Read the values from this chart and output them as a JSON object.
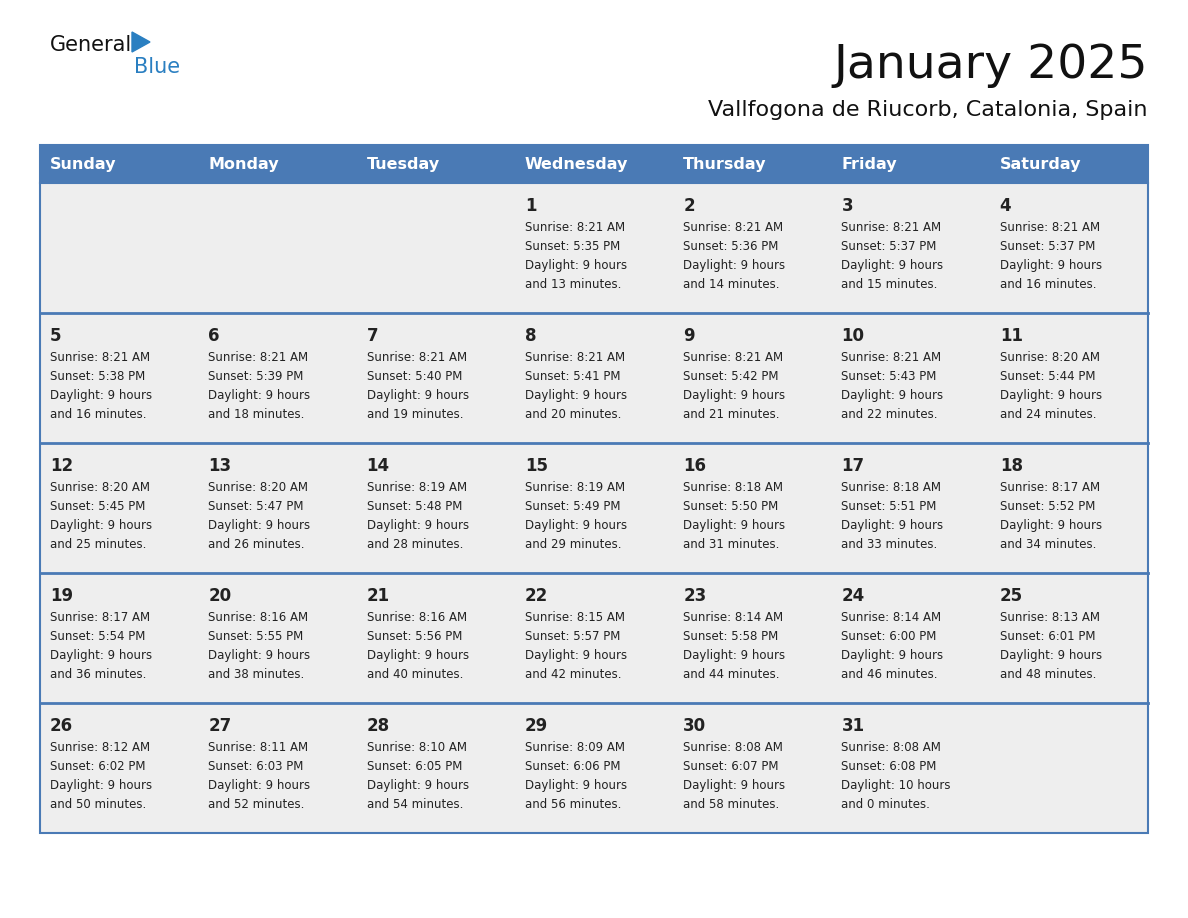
{
  "title": "January 2025",
  "subtitle": "Vallfogona de Riucorb, Catalonia, Spain",
  "days_of_week": [
    "Sunday",
    "Monday",
    "Tuesday",
    "Wednesday",
    "Thursday",
    "Friday",
    "Saturday"
  ],
  "header_bg": "#4a7ab5",
  "header_text": "#FFFFFF",
  "cell_bg": "#eeeeee",
  "separator_color": "#4a7ab5",
  "day_num_color": "#222222",
  "cell_text_color": "#222222",
  "title_color": "#111111",
  "logo_general_color": "#111111",
  "logo_blue_color": "#2a7fc1",
  "logo_triangle_color": "#2a7fc1",
  "calendar_data": [
    [
      null,
      null,
      null,
      {
        "day": 1,
        "sunrise": "8:21 AM",
        "sunset": "5:35 PM",
        "daylight_h": "9 hours",
        "daylight_m": "and 13 minutes."
      },
      {
        "day": 2,
        "sunrise": "8:21 AM",
        "sunset": "5:36 PM",
        "daylight_h": "9 hours",
        "daylight_m": "and 14 minutes."
      },
      {
        "day": 3,
        "sunrise": "8:21 AM",
        "sunset": "5:37 PM",
        "daylight_h": "9 hours",
        "daylight_m": "and 15 minutes."
      },
      {
        "day": 4,
        "sunrise": "8:21 AM",
        "sunset": "5:37 PM",
        "daylight_h": "9 hours",
        "daylight_m": "and 16 minutes."
      }
    ],
    [
      {
        "day": 5,
        "sunrise": "8:21 AM",
        "sunset": "5:38 PM",
        "daylight_h": "9 hours",
        "daylight_m": "and 16 minutes."
      },
      {
        "day": 6,
        "sunrise": "8:21 AM",
        "sunset": "5:39 PM",
        "daylight_h": "9 hours",
        "daylight_m": "and 18 minutes."
      },
      {
        "day": 7,
        "sunrise": "8:21 AM",
        "sunset": "5:40 PM",
        "daylight_h": "9 hours",
        "daylight_m": "and 19 minutes."
      },
      {
        "day": 8,
        "sunrise": "8:21 AM",
        "sunset": "5:41 PM",
        "daylight_h": "9 hours",
        "daylight_m": "and 20 minutes."
      },
      {
        "day": 9,
        "sunrise": "8:21 AM",
        "sunset": "5:42 PM",
        "daylight_h": "9 hours",
        "daylight_m": "and 21 minutes."
      },
      {
        "day": 10,
        "sunrise": "8:21 AM",
        "sunset": "5:43 PM",
        "daylight_h": "9 hours",
        "daylight_m": "and 22 minutes."
      },
      {
        "day": 11,
        "sunrise": "8:20 AM",
        "sunset": "5:44 PM",
        "daylight_h": "9 hours",
        "daylight_m": "and 24 minutes."
      }
    ],
    [
      {
        "day": 12,
        "sunrise": "8:20 AM",
        "sunset": "5:45 PM",
        "daylight_h": "9 hours",
        "daylight_m": "and 25 minutes."
      },
      {
        "day": 13,
        "sunrise": "8:20 AM",
        "sunset": "5:47 PM",
        "daylight_h": "9 hours",
        "daylight_m": "and 26 minutes."
      },
      {
        "day": 14,
        "sunrise": "8:19 AM",
        "sunset": "5:48 PM",
        "daylight_h": "9 hours",
        "daylight_m": "and 28 minutes."
      },
      {
        "day": 15,
        "sunrise": "8:19 AM",
        "sunset": "5:49 PM",
        "daylight_h": "9 hours",
        "daylight_m": "and 29 minutes."
      },
      {
        "day": 16,
        "sunrise": "8:18 AM",
        "sunset": "5:50 PM",
        "daylight_h": "9 hours",
        "daylight_m": "and 31 minutes."
      },
      {
        "day": 17,
        "sunrise": "8:18 AM",
        "sunset": "5:51 PM",
        "daylight_h": "9 hours",
        "daylight_m": "and 33 minutes."
      },
      {
        "day": 18,
        "sunrise": "8:17 AM",
        "sunset": "5:52 PM",
        "daylight_h": "9 hours",
        "daylight_m": "and 34 minutes."
      }
    ],
    [
      {
        "day": 19,
        "sunrise": "8:17 AM",
        "sunset": "5:54 PM",
        "daylight_h": "9 hours",
        "daylight_m": "and 36 minutes."
      },
      {
        "day": 20,
        "sunrise": "8:16 AM",
        "sunset": "5:55 PM",
        "daylight_h": "9 hours",
        "daylight_m": "and 38 minutes."
      },
      {
        "day": 21,
        "sunrise": "8:16 AM",
        "sunset": "5:56 PM",
        "daylight_h": "9 hours",
        "daylight_m": "and 40 minutes."
      },
      {
        "day": 22,
        "sunrise": "8:15 AM",
        "sunset": "5:57 PM",
        "daylight_h": "9 hours",
        "daylight_m": "and 42 minutes."
      },
      {
        "day": 23,
        "sunrise": "8:14 AM",
        "sunset": "5:58 PM",
        "daylight_h": "9 hours",
        "daylight_m": "and 44 minutes."
      },
      {
        "day": 24,
        "sunrise": "8:14 AM",
        "sunset": "6:00 PM",
        "daylight_h": "9 hours",
        "daylight_m": "and 46 minutes."
      },
      {
        "day": 25,
        "sunrise": "8:13 AM",
        "sunset": "6:01 PM",
        "daylight_h": "9 hours",
        "daylight_m": "and 48 minutes."
      }
    ],
    [
      {
        "day": 26,
        "sunrise": "8:12 AM",
        "sunset": "6:02 PM",
        "daylight_h": "9 hours",
        "daylight_m": "and 50 minutes."
      },
      {
        "day": 27,
        "sunrise": "8:11 AM",
        "sunset": "6:03 PM",
        "daylight_h": "9 hours",
        "daylight_m": "and 52 minutes."
      },
      {
        "day": 28,
        "sunrise": "8:10 AM",
        "sunset": "6:05 PM",
        "daylight_h": "9 hours",
        "daylight_m": "and 54 minutes."
      },
      {
        "day": 29,
        "sunrise": "8:09 AM",
        "sunset": "6:06 PM",
        "daylight_h": "9 hours",
        "daylight_m": "and 56 minutes."
      },
      {
        "day": 30,
        "sunrise": "8:08 AM",
        "sunset": "6:07 PM",
        "daylight_h": "9 hours",
        "daylight_m": "and 58 minutes."
      },
      {
        "day": 31,
        "sunrise": "8:08 AM",
        "sunset": "6:08 PM",
        "daylight_h": "10 hours",
        "daylight_m": "and 0 minutes."
      },
      null
    ]
  ]
}
